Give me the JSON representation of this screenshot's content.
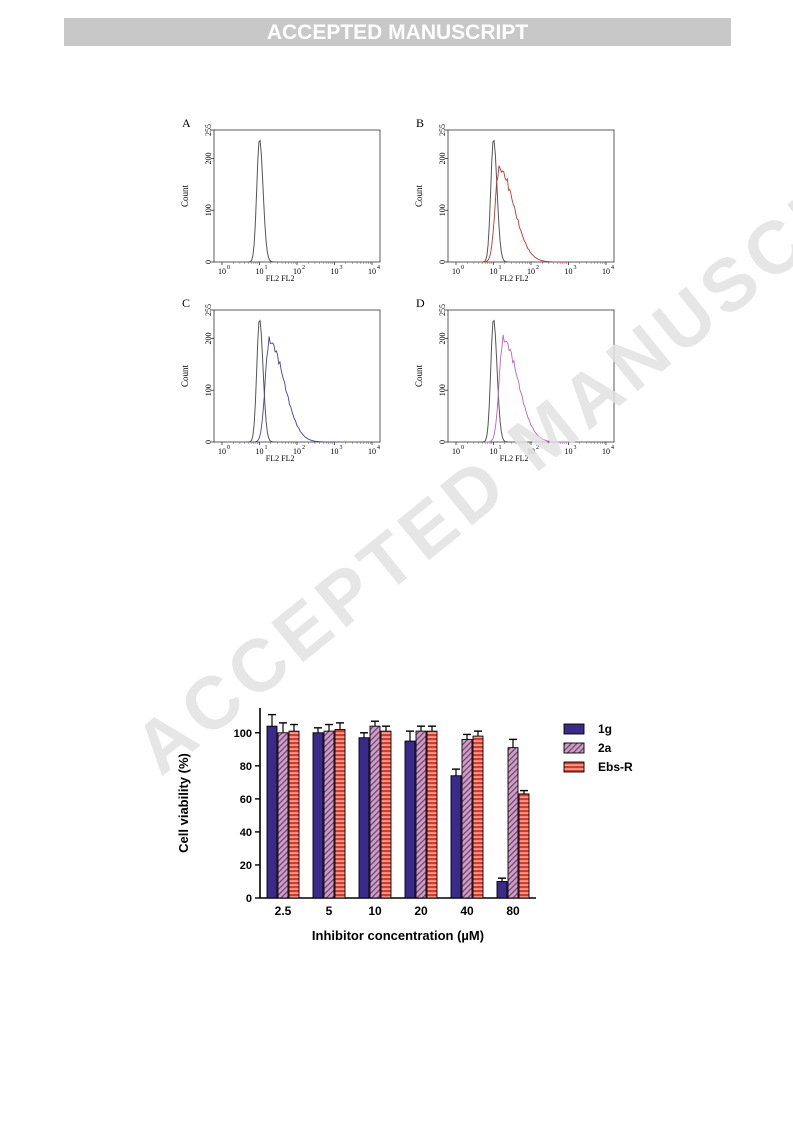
{
  "header": {
    "banner_text": "ACCEPTED MANUSCRIPT"
  },
  "watermark": {
    "text": "ACCEPTED MANUSCRIPT"
  },
  "colors": {
    "banner_bg": "#c8c8c8",
    "gray_curve": "#555555",
    "red_curve": "#c83232",
    "blue_curve": "#4040b0",
    "magenta_curve": "#c060c8",
    "bar_1g": "#3a2a8a",
    "bar_2a": "#7a3a6a",
    "bar_ebs": "#d83a2a"
  },
  "chart_data": [
    {
      "type": "line",
      "panels": [
        {
          "label": "A",
          "series": [
            {
              "color": "gray",
              "peak_x": 10,
              "peak_count": 238
            }
          ]
        },
        {
          "label": "B",
          "series": [
            {
              "color": "gray",
              "peak_x": 10,
              "peak_count": 238
            },
            {
              "color": "red",
              "peak_x": 14,
              "peak_count": 180
            }
          ]
        },
        {
          "label": "C",
          "series": [
            {
              "color": "gray",
              "peak_x": 10,
              "peak_count": 238
            },
            {
              "color": "blue",
              "peak_x": 18,
              "peak_count": 195
            }
          ]
        },
        {
          "label": "D",
          "series": [
            {
              "color": "gray",
              "peak_x": 10,
              "peak_count": 238
            },
            {
              "color": "magenta",
              "peak_x": 18,
              "peak_count": 198
            }
          ]
        }
      ],
      "ylabel": "Count",
      "xlabel": "FL2 FL2",
      "yticks": [
        "0",
        "100",
        "200",
        "255"
      ],
      "xticks": [
        "10",
        "10",
        "10",
        "10",
        "10"
      ],
      "xtick_exponents": [
        "0",
        "1",
        "2",
        "3",
        "4"
      ],
      "xscale": "log",
      "xlim": [
        1,
        10000
      ],
      "ylim": [
        0,
        255
      ]
    },
    {
      "type": "bar",
      "categories": [
        "2.5",
        "5",
        "10",
        "20",
        "40",
        "80"
      ],
      "series": [
        {
          "name": "1g",
          "values": [
            104,
            100,
            97,
            95,
            74,
            10
          ],
          "errors": [
            7,
            3,
            3,
            6,
            4,
            2
          ]
        },
        {
          "name": "2a",
          "values": [
            100,
            101,
            104,
            101,
            96,
            91
          ],
          "errors": [
            6,
            4,
            3,
            3,
            3,
            5
          ]
        },
        {
          "name": "Ebs-R",
          "values": [
            101,
            102,
            101,
            101,
            98,
            63
          ],
          "errors": [
            4,
            4,
            3,
            3,
            3,
            2
          ]
        }
      ],
      "ylabel": "Cell viability (%)",
      "xlabel": "Inhibitor concentration (µM)",
      "yticks": [
        "0",
        "20",
        "40",
        "60",
        "80",
        "100"
      ],
      "ylim": [
        0,
        115
      ],
      "legend": "right"
    }
  ]
}
